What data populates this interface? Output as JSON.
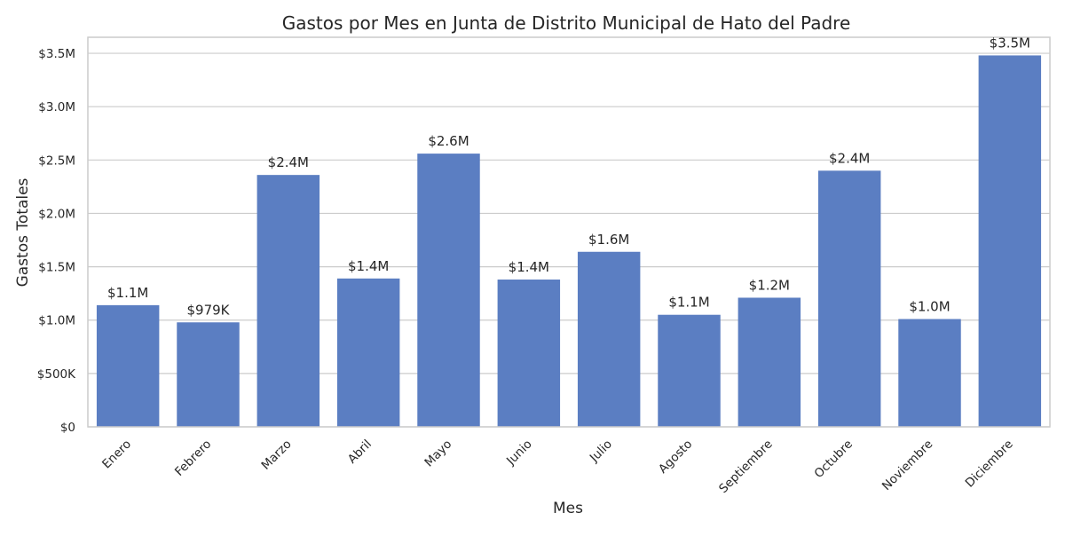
{
  "chart_data": {
    "type": "bar",
    "title": "Gastos por Mes en Junta de Distrito Municipal de Hato del Padre",
    "xlabel": "Mes",
    "ylabel": "Gastos Totales",
    "categories": [
      "Enero",
      "Febrero",
      "Marzo",
      "Abril",
      "Mayo",
      "Junio",
      "Julio",
      "Agosto",
      "Septiembre",
      "Octubre",
      "Noviembre",
      "Diciembre"
    ],
    "values": [
      1140000,
      979000,
      2360000,
      1390000,
      2560000,
      1380000,
      1640000,
      1050000,
      1210000,
      2400000,
      1010000,
      3480000
    ],
    "data_labels": [
      "$1.1M",
      "$979K",
      "$2.4M",
      "$1.4M",
      "$2.6M",
      "$1.4M",
      "$1.6M",
      "$1.1M",
      "$1.2M",
      "$2.4M",
      "$1.0M",
      "$3.5M"
    ],
    "yticks": [
      0,
      500000,
      1000000,
      1500000,
      2000000,
      2500000,
      3000000,
      3500000
    ],
    "ytick_labels": [
      "$0",
      "$500K",
      "$1.0M",
      "$1.5M",
      "$2.0M",
      "$2.5M",
      "$3.0M",
      "$3.5M"
    ],
    "ylim": [
      0,
      3650000
    ],
    "grid": "horizontal",
    "bar_color": "#5b7ec2",
    "grid_color": "#cccccc",
    "frame_color": "#cccccc"
  }
}
